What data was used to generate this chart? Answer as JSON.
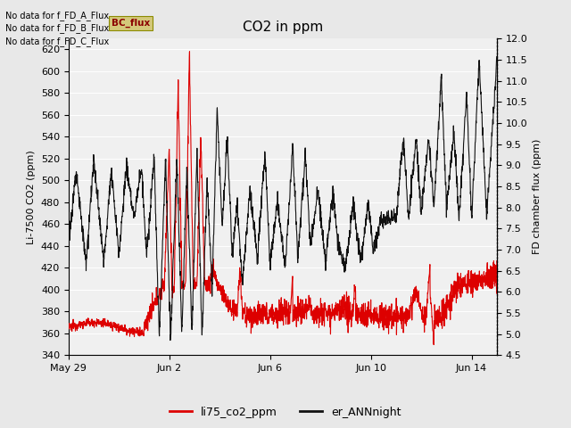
{
  "title": "CO2 in ppm",
  "ylabel_left": "Li-7500 CO2 (ppm)",
  "ylabel_right": "FD chamber flux (ppm)",
  "ylim_left": [
    340,
    630
  ],
  "ylim_right": [
    4.5,
    12.0
  ],
  "yticks_left": [
    340,
    360,
    380,
    400,
    420,
    440,
    460,
    480,
    500,
    520,
    540,
    560,
    580,
    600,
    620
  ],
  "yticks_right": [
    4.5,
    5.0,
    5.5,
    6.0,
    6.5,
    7.0,
    7.5,
    8.0,
    8.5,
    9.0,
    9.5,
    10.0,
    10.5,
    11.0,
    11.5,
    12.0
  ],
  "xtick_labels": [
    "May 29",
    "Jun 2",
    "Jun 6",
    "Jun 10",
    "Jun 14"
  ],
  "legend_labels": [
    "li75_co2_ppm",
    "er_ANNnight"
  ],
  "legend_colors": [
    "#dd0000",
    "#111111"
  ],
  "no_data_texts": [
    "No data for f_FD_A_Flux",
    "No data for f_FD_B_Flux",
    "No data for f_FD_C_Flux"
  ],
  "bc_flux_label": "BC_flux",
  "bg_color": "#e8e8e8",
  "plot_bg_color": "#f0f0f0",
  "title_fontsize": 11,
  "axis_fontsize": 8,
  "tick_fontsize": 8,
  "legend_fontsize": 9,
  "line_color_red": "#dd0000",
  "line_color_black": "#111111"
}
